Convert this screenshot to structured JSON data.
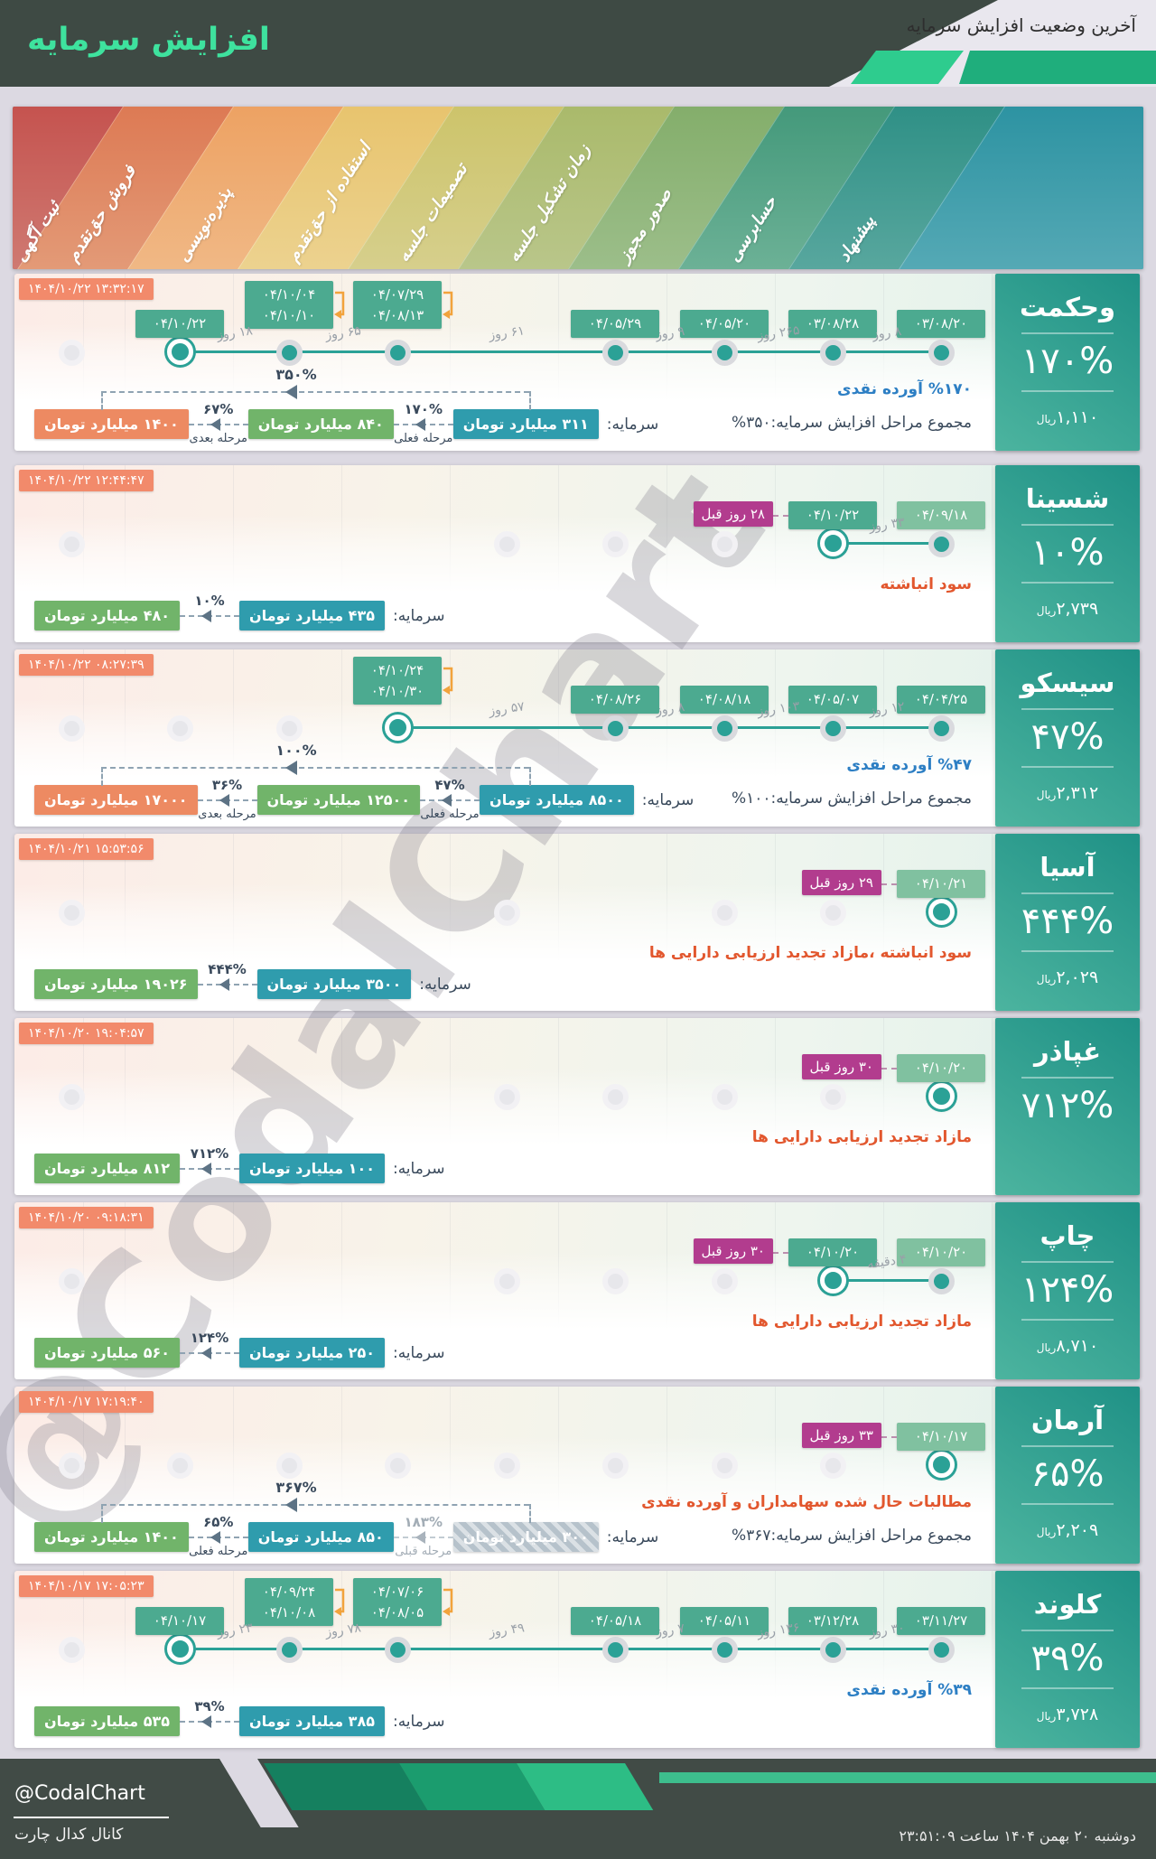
{
  "header": {
    "title": "افزایش سرمایه",
    "subtitle": "آخرین وضعیت افزایش سرمایه"
  },
  "stages": [
    "ثبت آگهی",
    "فروش حق‌تقدم",
    "پذیره‌نویسی",
    "استفاده از حق‌تقدم",
    "تصمیمات جلسه",
    "زمان تشکیل جلسه",
    "صدور مجوز",
    "حسابرسی",
    "پیشنهاد"
  ],
  "band_colors": [
    [
      "#c5534f",
      "#cf7a72"
    ],
    [
      "#dd7a54",
      "#e39a77"
    ],
    [
      "#eda263",
      "#f0b885"
    ],
    [
      "#e8c46e",
      "#ecd28f"
    ],
    [
      "#cdc46b",
      "#d6cf8c"
    ],
    [
      "#aaba6b",
      "#b9c68a"
    ],
    [
      "#84ae6b",
      "#9cbe8a"
    ],
    [
      "#44997b",
      "#6cb196"
    ],
    [
      "#2f9086",
      "#58a79e"
    ],
    [
      "#2d93a2",
      "#55a9b5"
    ]
  ],
  "watermark": "@CodalChart",
  "labels": {
    "capital_prefix": "سرمایه:",
    "rial_unit": "ریال"
  },
  "colors": {
    "accent_teal": "#2ba196",
    "badge_green": "#4caa90",
    "badge_light_green": "#80c1a0",
    "badge_magenta": "#b23c8e",
    "timestamp_orange": "#f28a6b",
    "note_orange": "#e2572e",
    "note_blue": "#2d7fc4",
    "chain_teal": "#2f9cad",
    "chain_green": "#71b46a",
    "chain_orange": "#ed8a62"
  },
  "chart_data": {
    "type": "table",
    "title": "آخرین وضعیت افزایش سرمایه",
    "stage_columns": [
      "پیشنهاد",
      "حسابرسی",
      "صدور مجوز",
      "زمان تشکیل جلسه",
      "تصمیمات جلسه",
      "استفاده از حق‌تقدم",
      "پذیره‌نویسی",
      "فروش حق‌تقدم",
      "ثبت آگهی"
    ],
    "companies": [
      "وحکمت",
      "شسینا",
      "سیسکو",
      "آسیا",
      "غپاذر",
      "چاپ",
      "آرمان",
      "کلوند"
    ],
    "increase_percent": [
      170,
      10,
      47,
      444,
      712,
      124,
      65,
      39
    ],
    "price_rial": [
      1110,
      2739,
      2312,
      2029,
      null,
      8710,
      2209,
      3728
    ],
    "capital_billion_toman_from": [
      311,
      435,
      8500,
      3500,
      100,
      250,
      300,
      385
    ],
    "capital_billion_toman_to": [
      1400,
      480,
      17000,
      19026,
      812,
      560,
      1400,
      535
    ]
  },
  "companies": [
    {
      "name": "وحکمت",
      "percent": "۱۷۰%",
      "price": "۱,۱۱۰",
      "timestamp": "۱۴۰۴/۱۰/۲۲ ۱۳:۳۲:۱۷",
      "note": "%۱۷۰ آورده نقدی",
      "note_color": "blue",
      "total": "مجموع مراحل افزایش سرمایه:۳۵۰%",
      "events": [
        {
          "slot": 0,
          "dates": [
            "۰۳/۰۸/۲۰"
          ],
          "style": "green"
        },
        {
          "slot": 1,
          "dates": [
            "۰۳/۰۸/۲۸"
          ],
          "style": "green",
          "gap": "۸ روز"
        },
        {
          "slot": 2,
          "dates": [
            "۰۴/۰۵/۲۰"
          ],
          "style": "green",
          "gap": "۲۶۵ روز"
        },
        {
          "slot": 3,
          "dates": [
            "۰۴/۰۵/۲۹"
          ],
          "style": "green",
          "gap": "۹ روز"
        },
        {
          "slot": 5,
          "dates": [
            "۰۴/۰۷/۲۹",
            "۰۴/۰۸/۱۳"
          ],
          "style": "green",
          "gap": "۶۱ روز",
          "bracket": true
        },
        {
          "slot": 6,
          "dates": [
            "۰۴/۱۰/۰۴",
            "۰۴/۱۰/۱۰"
          ],
          "style": "green",
          "gap": "۶۵ روز",
          "bracket": true
        },
        {
          "slot": 7,
          "dates": [
            "۰۴/۱۰/۲۲"
          ],
          "style": "green",
          "gap": "۱۸ روز",
          "active": true
        }
      ],
      "gray_slots": [
        8
      ],
      "chain": {
        "overview": "۳۵۰%",
        "badges": [
          {
            "text": "۳۱۱ میلیارد تومان",
            "style": "teal"
          },
          {
            "text": "۸۴۰ میلیارد تومان",
            "style": "green"
          },
          {
            "text": "۱۴۰۰ میلیارد تومان",
            "style": "orange"
          }
        ],
        "connectors": [
          {
            "pct": "۱۷۰%",
            "stage": "مرحله فعلی"
          },
          {
            "pct": "۶۷%",
            "stage": "مرحله بعدی"
          }
        ]
      }
    },
    {
      "name": "شسینا",
      "percent": "۱۰%",
      "price": "۲,۷۳۹",
      "timestamp": "۱۴۰۴/۱۰/۲۲ ۱۲:۴۴:۴۷",
      "note": "سود انباشته",
      "note_color": "orange",
      "total": null,
      "events": [
        {
          "slot": 0,
          "dates": [
            "۰۴/۰۹/۱۸"
          ],
          "style": "light"
        },
        {
          "slot": 1,
          "dates": [
            "۰۴/۱۰/۲۲"
          ],
          "style": "green",
          "gap": "۳۳ روز",
          "active": true,
          "ago": "۲۸ روز قبل"
        }
      ],
      "gray_slots": [
        2,
        3,
        4,
        8
      ],
      "chain": {
        "overview": null,
        "badges": [
          {
            "text": "۴۳۵ میلیارد تومان",
            "style": "teal"
          },
          {
            "text": "۴۸۰ میلیارد تومان",
            "style": "green"
          }
        ],
        "connectors": [
          {
            "pct": "۱۰%",
            "stage": null
          }
        ]
      }
    },
    {
      "name": "سیسکو",
      "percent": "۴۷%",
      "price": "۲,۳۱۲",
      "timestamp": "۱۴۰۴/۱۰/۲۲ ۰۸:۲۷:۳۹",
      "note": "%۴۷ آورده نقدی",
      "note_color": "blue",
      "total": "مجموع مراحل افزایش سرمایه:۱۰۰%",
      "events": [
        {
          "slot": 0,
          "dates": [
            "۰۴/۰۴/۲۵"
          ],
          "style": "green"
        },
        {
          "slot": 1,
          "dates": [
            "۰۴/۰۵/۰۷"
          ],
          "style": "green",
          "gap": "۱۲ روز"
        },
        {
          "slot": 2,
          "dates": [
            "۰۴/۰۸/۱۸"
          ],
          "style": "green",
          "gap": "۱۰۳ روز"
        },
        {
          "slot": 3,
          "dates": [
            "۰۴/۰۸/۲۶"
          ],
          "style": "green",
          "gap": "۸ روز"
        },
        {
          "slot": 5,
          "dates": [
            "۰۴/۱۰/۲۴",
            "۰۴/۱۰/۳۰"
          ],
          "style": "green",
          "gap": "۵۷ روز",
          "bracket": true,
          "active": true
        }
      ],
      "gray_slots": [
        6,
        7,
        8
      ],
      "chain": {
        "overview": "۱۰۰%",
        "badges": [
          {
            "text": "۸۵۰۰ میلیارد تومان",
            "style": "teal"
          },
          {
            "text": "۱۲۵۰۰ میلیارد تومان",
            "style": "green"
          },
          {
            "text": "۱۷۰۰۰ میلیارد تومان",
            "style": "orange"
          }
        ],
        "connectors": [
          {
            "pct": "۴۷%",
            "stage": "مرحله فعلی"
          },
          {
            "pct": "۳۶%",
            "stage": "مرحله بعدی"
          }
        ]
      }
    },
    {
      "name": "آسیا",
      "percent": "۴۴۴%",
      "price": "۲,۰۲۹",
      "timestamp": "۱۴۰۴/۱۰/۲۱ ۱۵:۵۳:۵۶",
      "note": "سود انباشته ،مازاد تجدید ارزیابی دارایی ها",
      "note_color": "orange",
      "total": null,
      "events": [
        {
          "slot": 0,
          "dates": [
            "۰۴/۱۰/۲۱"
          ],
          "style": "light",
          "active": true,
          "ago": "۲۹ روز قبل"
        }
      ],
      "gray_slots": [
        1,
        2,
        4,
        8
      ],
      "chain": {
        "overview": null,
        "badges": [
          {
            "text": "۳۵۰۰ میلیارد تومان",
            "style": "teal"
          },
          {
            "text": "۱۹۰۲۶ میلیارد تومان",
            "style": "green"
          }
        ],
        "connectors": [
          {
            "pct": "۴۴۴%",
            "stage": null
          }
        ]
      }
    },
    {
      "name": "غپاذر",
      "percent": "۷۱۲%",
      "price": null,
      "timestamp": "۱۴۰۴/۱۰/۲۰ ۱۹:۰۴:۵۷",
      "note": "مازاد تجدید ارزیابی دارایی ها",
      "note_color": "orange",
      "total": null,
      "events": [
        {
          "slot": 0,
          "dates": [
            "۰۴/۱۰/۲۰"
          ],
          "style": "light",
          "active": true,
          "ago": "۳۰ روز قبل"
        }
      ],
      "gray_slots": [
        1,
        2,
        3,
        4,
        8
      ],
      "chain": {
        "overview": null,
        "badges": [
          {
            "text": "۱۰۰ میلیارد تومان",
            "style": "teal"
          },
          {
            "text": "۸۱۲ میلیارد تومان",
            "style": "green"
          }
        ],
        "connectors": [
          {
            "pct": "۷۱۲%",
            "stage": null
          }
        ]
      }
    },
    {
      "name": "چاپ",
      "percent": "۱۲۴%",
      "price": "۸,۷۱۰",
      "timestamp": "۱۴۰۴/۱۰/۲۰ ۰۹:۱۸:۳۱",
      "note": "مازاد تجدید ارزیابی دارایی ها",
      "note_color": "orange",
      "total": null,
      "events": [
        {
          "slot": 0,
          "dates": [
            "۰۴/۱۰/۲۰"
          ],
          "style": "light"
        },
        {
          "slot": 1,
          "dates": [
            "۰۴/۱۰/۲۰"
          ],
          "style": "green",
          "gap": "۴ دقیقه",
          "active": true,
          "ago": "۳۰ روز قبل"
        }
      ],
      "gray_slots": [
        2,
        3,
        4,
        8
      ],
      "chain": {
        "overview": null,
        "badges": [
          {
            "text": "۲۵۰ میلیارد تومان",
            "style": "teal"
          },
          {
            "text": "۵۶۰ میلیارد تومان",
            "style": "green"
          }
        ],
        "connectors": [
          {
            "pct": "۱۲۴%",
            "stage": null
          }
        ]
      }
    },
    {
      "name": "آرمان",
      "percent": "۶۵%",
      "price": "۲,۲۰۹",
      "timestamp": "۱۴۰۴/۱۰/۱۷ ۱۷:۱۹:۴۰",
      "note": "مطالبات حال شده سهامداران و آورده نقدی",
      "note_color": "orange",
      "total": "مجموع مراحل افزایش سرمایه:۳۶۷%",
      "events": [
        {
          "slot": 0,
          "dates": [
            "۰۴/۱۰/۱۷"
          ],
          "style": "light",
          "active": true,
          "ago": "۳۳ روز قبل"
        }
      ],
      "gray_slots": [
        1,
        2,
        3,
        4,
        5,
        6,
        7,
        8
      ],
      "chain": {
        "overview": "۳۶۷%",
        "badges": [
          {
            "text": "۳۰۰ میلیارد تومان",
            "style": "hatch"
          },
          {
            "text": "۸۵۰ میلیارد تومان",
            "style": "teal"
          },
          {
            "text": "۱۴۰۰ میلیارد تومان",
            "style": "green"
          }
        ],
        "connectors": [
          {
            "pct": "۱۸۳%",
            "stage": "مرحله قبلی",
            "gray": true
          },
          {
            "pct": "۶۵%",
            "stage": "مرحله فعلی"
          }
        ]
      }
    },
    {
      "name": "کلوند",
      "percent": "۳۹%",
      "price": "۳,۷۲۸",
      "timestamp": "۱۴۰۴/۱۰/۱۷ ۱۷:۰۵:۲۳",
      "note": "%۳۹ آورده نقدی",
      "note_color": "blue",
      "total": null,
      "events": [
        {
          "slot": 0,
          "dates": [
            "۰۳/۱۱/۲۷"
          ],
          "style": "green"
        },
        {
          "slot": 1,
          "dates": [
            "۰۳/۱۲/۲۸"
          ],
          "style": "green",
          "gap": "۳۰ روز"
        },
        {
          "slot": 2,
          "dates": [
            "۰۴/۰۵/۱۱"
          ],
          "style": "green",
          "gap": "۱۳۶ روز"
        },
        {
          "slot": 3,
          "dates": [
            "۰۴/۰۵/۱۸"
          ],
          "style": "green",
          "gap": "۷ روز"
        },
        {
          "slot": 5,
          "dates": [
            "۰۴/۰۷/۰۶",
            "۰۴/۰۸/۰۵"
          ],
          "style": "green",
          "gap": "۴۹ روز",
          "bracket": true
        },
        {
          "slot": 6,
          "dates": [
            "۰۴/۰۹/۲۴",
            "۰۴/۱۰/۰۸"
          ],
          "style": "green",
          "gap": "۷۸ روز",
          "bracket": true
        },
        {
          "slot": 7,
          "dates": [
            "۰۴/۱۰/۱۷"
          ],
          "style": "green",
          "gap": "۲۳ روز",
          "active": true
        }
      ],
      "gray_slots": [
        8
      ],
      "chain": {
        "overview": null,
        "badges": [
          {
            "text": "۳۸۵ میلیارد تومان",
            "style": "teal"
          },
          {
            "text": "۵۳۵ میلیارد تومان",
            "style": "green"
          }
        ],
        "connectors": [
          {
            "pct": "۳۹%",
            "stage": null
          }
        ]
      }
    }
  ],
  "footer": {
    "handle": "@CodalChart",
    "channel": "کانال کدال چارت",
    "datetime": "دوشنبه ۲۰ بهمن ۱۴۰۴ ساعت ۲۳:۵۱:۰۹"
  }
}
